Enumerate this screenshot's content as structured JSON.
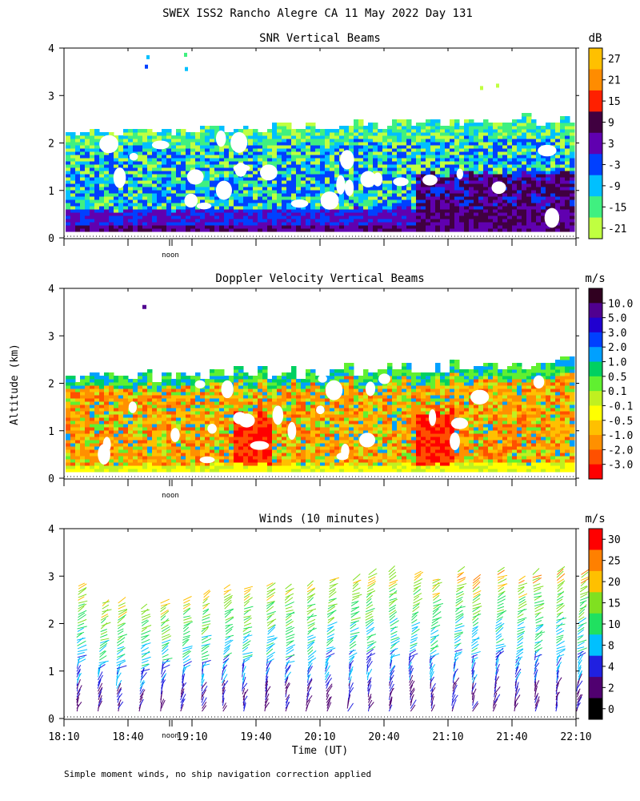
{
  "page": {
    "title": "SWEX ISS2 Rancho Alegre CA  11 May 2022 Day 131",
    "footnote": "Simple moment winds, no ship navigation correction applied",
    "ylabel": "Altitude (km)",
    "xlabel": "Time (UT)",
    "noon_label": "noon"
  },
  "chart_data": [
    {
      "type": "heatmap",
      "title": "SNR Vertical Beams",
      "unit": "dB",
      "ylim": [
        0,
        4
      ],
      "yticks": [
        "0",
        "1",
        "2",
        "3",
        "4"
      ],
      "colorbar_labels": [
        "27",
        "21",
        "15",
        "9",
        "3",
        "-3",
        "-9",
        "-15",
        "-21"
      ],
      "colors": [
        "#ffc000",
        "#ff8c00",
        "#ff2000",
        "#400040",
        "#6000b0",
        "#0040ff",
        "#00c0ff",
        "#40f080",
        "#c0ff40"
      ]
    },
    {
      "type": "heatmap",
      "title": "Doppler Velocity Vertical Beams",
      "unit": "m/s",
      "ylim": [
        0,
        4
      ],
      "yticks": [
        "0",
        "1",
        "2",
        "3",
        "4"
      ],
      "colorbar_labels": [
        "10.0",
        "5.0",
        "3.0",
        "2.0",
        "1.0",
        "0.5",
        "0.1",
        "-0.1",
        "-0.5",
        "-1.0",
        "-2.0",
        "-3.0"
      ],
      "colors": [
        "#300020",
        "#500090",
        "#2000d0",
        "#0040ff",
        "#00a0ff",
        "#00d060",
        "#60f030",
        "#c0f020",
        "#ffff00",
        "#ffc000",
        "#ff9000",
        "#ff5000",
        "#ff0000"
      ]
    },
    {
      "type": "scatter",
      "title": "Winds (10 minutes)",
      "unit": "m/s",
      "ylim": [
        0,
        4
      ],
      "yticks": [
        "0",
        "1",
        "2",
        "3",
        "4"
      ],
      "x_categories": [
        "18:10",
        "18:40",
        "19:10",
        "19:40",
        "20:10",
        "20:40",
        "21:10",
        "21:40",
        "22:10"
      ],
      "colorbar_labels": [
        "30",
        "25",
        "20",
        "15",
        "10",
        "8",
        "4",
        "2",
        "0"
      ],
      "colors": [
        "#ff0000",
        "#ff8000",
        "#ffc000",
        "#80e020",
        "#20e060",
        "#00c0ff",
        "#2020e0",
        "#500070",
        "#000000"
      ],
      "wind_profiles": [
        {
          "time": "18:10",
          "top_km": 2.9
        },
        {
          "time": "18:20",
          "top_km": 2.5
        },
        {
          "time": "18:30",
          "top_km": 2.5
        },
        {
          "time": "18:40",
          "top_km": 2.4
        },
        {
          "time": "18:50",
          "top_km": 2.5
        },
        {
          "time": "19:00",
          "top_km": 2.6
        },
        {
          "time": "19:10",
          "top_km": 2.7
        },
        {
          "time": "19:20",
          "top_km": 2.8
        },
        {
          "time": "19:30",
          "top_km": 2.8
        },
        {
          "time": "19:40",
          "top_km": 2.9
        },
        {
          "time": "19:50",
          "top_km": 2.8
        },
        {
          "time": "20:00",
          "top_km": 2.9
        },
        {
          "time": "20:10",
          "top_km": 3.0
        },
        {
          "time": "20:20",
          "top_km": 3.0
        },
        {
          "time": "20:30",
          "top_km": 3.1
        },
        {
          "time": "20:40",
          "top_km": 3.2
        },
        {
          "time": "20:50",
          "top_km": 3.1
        },
        {
          "time": "21:00",
          "top_km": 3.0
        },
        {
          "time": "21:10",
          "top_km": 3.2
        },
        {
          "time": "21:20",
          "top_km": 3.0
        },
        {
          "time": "21:30",
          "top_km": 3.2
        },
        {
          "time": "21:40",
          "top_km": 3.0
        },
        {
          "time": "21:50",
          "top_km": 3.1
        },
        {
          "time": "22:00",
          "top_km": 3.2
        },
        {
          "time": "22:10",
          "top_km": 3.1
        }
      ]
    }
  ]
}
